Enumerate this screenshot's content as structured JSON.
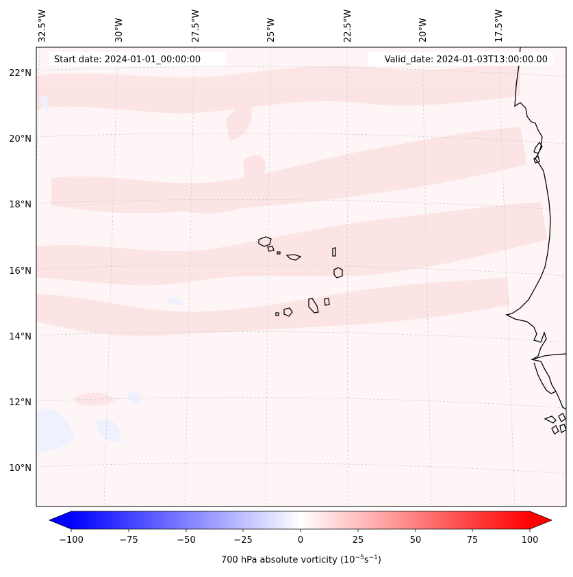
{
  "header": {
    "start_label": "Start date: 2024-01-01_00:00:00",
    "valid_label": "Valid_date: 2024-01-03T13:00:00.00"
  },
  "longitudes": [
    "32.5°W",
    "30°W",
    "27.5°W",
    "25°W",
    "22.5°W",
    "20°W",
    "17.5°W"
  ],
  "latitudes": [
    "22°N",
    "20°N",
    "18°N",
    "16°N",
    "14°N",
    "12°N",
    "10°N"
  ],
  "colorbar": {
    "label": "700 hPa absolute vorticity (10",
    "label_exp1": "−5",
    "label_mid": "s",
    "label_exp2": "−1",
    "label_end": ")",
    "ticks": [
      "−100",
      "−75",
      "−50",
      "−25",
      "0",
      "25",
      "50",
      "75",
      "100"
    ],
    "min": -100,
    "max": 100,
    "low_color": "#0000ff",
    "mid_color": "#ffffff",
    "high_color": "#ff0000"
  },
  "colors": {
    "background_field": "#fef6f6",
    "positive_light": "#fde3e3",
    "negative_light": "#eef1ff",
    "coast": "#000000",
    "grid": "#c8c8c8"
  }
}
